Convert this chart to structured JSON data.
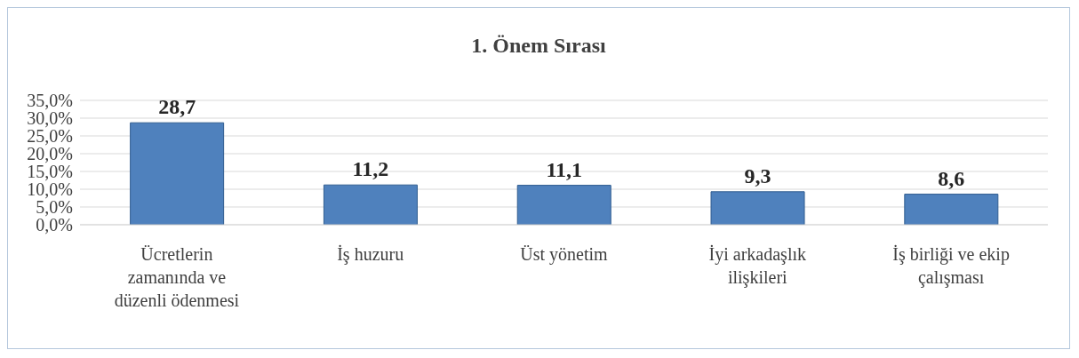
{
  "chart_data": {
    "type": "bar",
    "title": "1. Önem Sırası",
    "categories": [
      "Ücretlerin zamanında ve düzenli ödenmesi",
      "İş huzuru",
      "Üst yönetim",
      "İyi arkadaşlık ilişkileri",
      "İş birliği ve ekip çalışması"
    ],
    "values": [
      28.7,
      11.2,
      11.1,
      9.3,
      8.6
    ],
    "value_labels": [
      "28,7",
      "11,2",
      "11,1",
      "9,3",
      "8,6"
    ],
    "color": "#4f81bd",
    "ylim": [
      0,
      35
    ],
    "yticks": [
      {
        "value": 0,
        "label": "0,0%"
      },
      {
        "value": 5,
        "label": "5,0%"
      },
      {
        "value": 10,
        "label": "10,0%"
      },
      {
        "value": 15,
        "label": "15,0%"
      },
      {
        "value": 20,
        "label": "20,0%"
      },
      {
        "value": 25,
        "label": "25,0%"
      },
      {
        "value": 30,
        "label": "30,0%"
      },
      {
        "value": 35,
        "label": "35,0%"
      }
    ],
    "grid": "y"
  }
}
